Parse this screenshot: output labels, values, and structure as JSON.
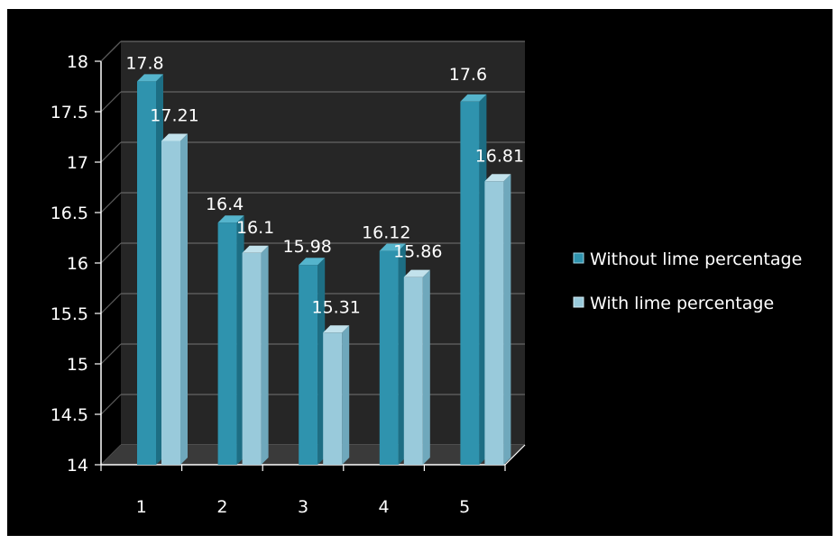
{
  "chart_data": {
    "type": "bar",
    "categories": [
      "1",
      "2",
      "3",
      "4",
      "5"
    ],
    "series": [
      {
        "name": "Without lime percentage",
        "values": [
          17.8,
          16.4,
          15.98,
          16.12,
          17.6
        ],
        "labels": [
          "17.8",
          "16.4",
          "15.98",
          "16.12",
          "17.6"
        ]
      },
      {
        "name": "With lime  percentage",
        "values": [
          17.21,
          16.1,
          15.31,
          15.86,
          16.81
        ],
        "labels": [
          "17.21",
          "16.1",
          "15.31",
          "15.86",
          "16.81"
        ]
      }
    ],
    "ylim": [
      14,
      18
    ],
    "yticks": [
      "14",
      "14.5",
      "15",
      "15.5",
      "16",
      "16.5",
      "17",
      "17.5",
      "18"
    ],
    "grid": true,
    "legend_position": "right",
    "three_d": true
  },
  "colors": {
    "background": "#000000",
    "frame": "#ffffff",
    "wall": "#262626",
    "gridline": "#5a5a5a",
    "series_front": [
      "#2f93ae",
      "#99cadb"
    ],
    "series_side": [
      "#1d6e84",
      "#6fa8bc"
    ],
    "series_top": [
      "#55b4cc",
      "#c2e2ec"
    ]
  }
}
